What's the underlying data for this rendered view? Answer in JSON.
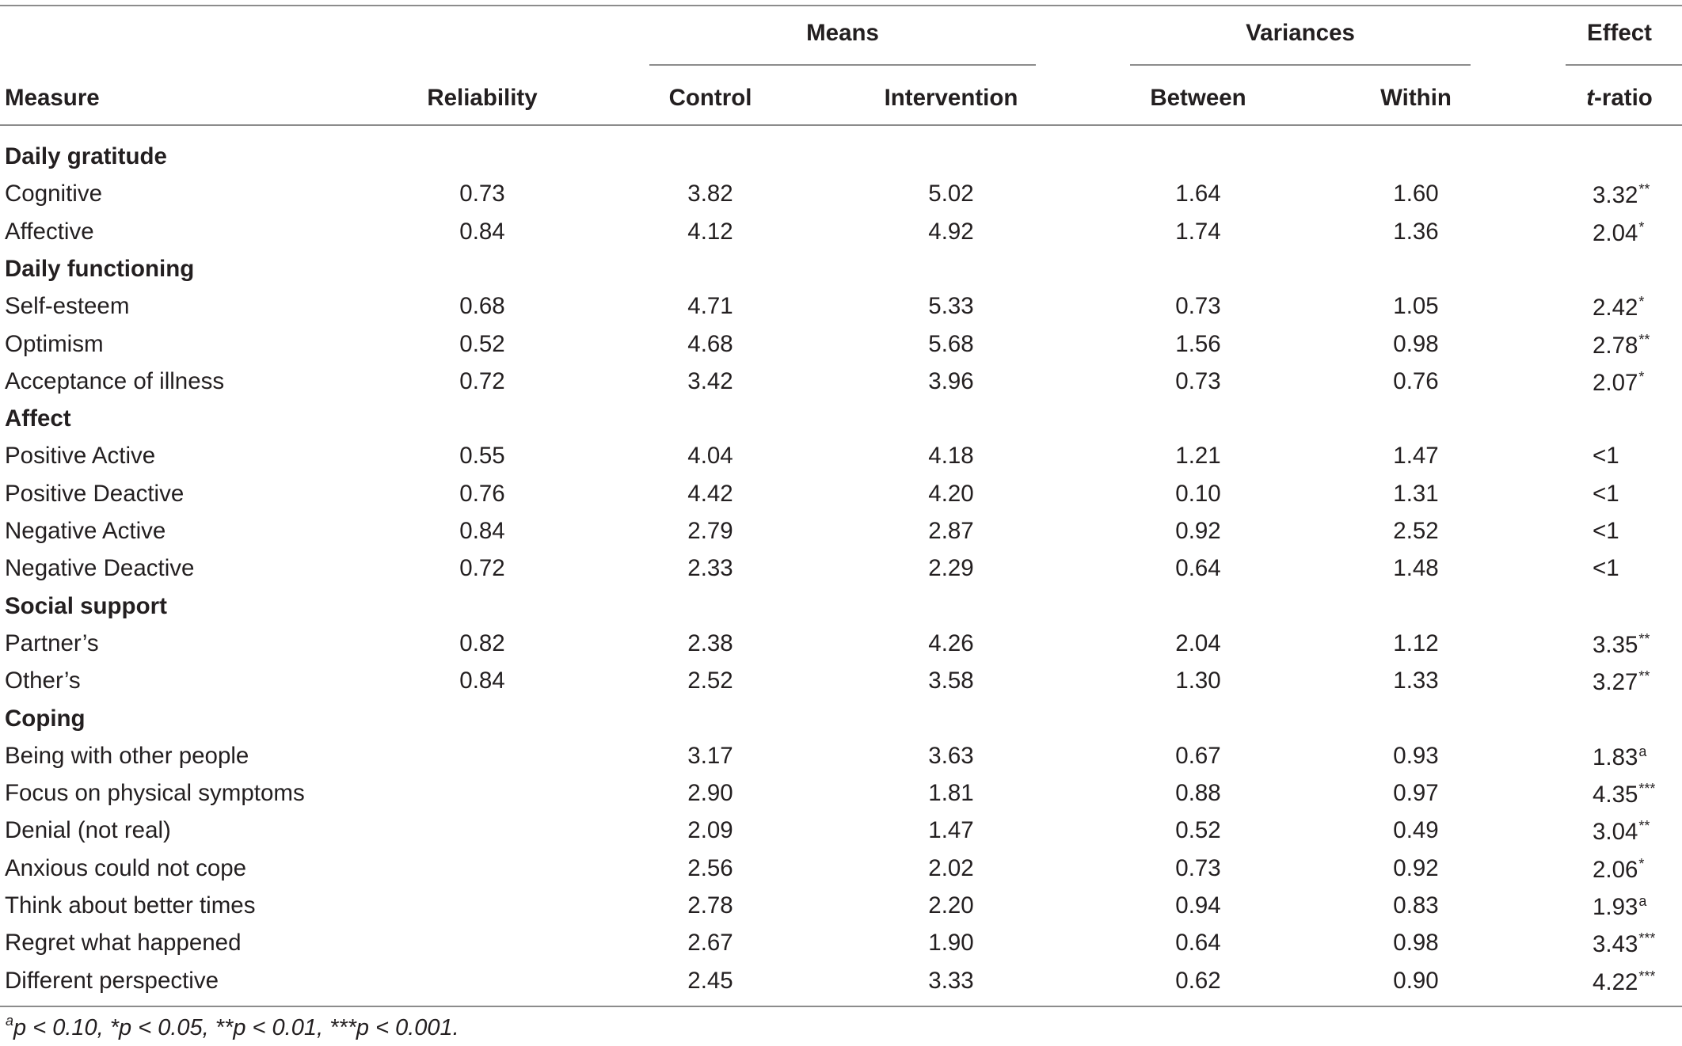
{
  "headers": {
    "group_means": "Means",
    "group_variances": "Variances",
    "group_effect": "Effect",
    "measure": "Measure",
    "reliability": "Reliability",
    "control": "Control",
    "intervention": "Intervention",
    "between": "Between",
    "within": "Within",
    "t_italic": "t",
    "t_suffix": "-ratio"
  },
  "rows": [
    {
      "type": "section",
      "label": "Daily gratitude"
    },
    {
      "type": "data",
      "measure": "Cognitive",
      "reliability": "0.73",
      "control": "3.82",
      "intervention": "5.02",
      "between": "1.64",
      "within": "1.60",
      "t": "3.32",
      "sig": "**"
    },
    {
      "type": "data",
      "measure": "Affective",
      "reliability": "0.84",
      "control": "4.12",
      "intervention": "4.92",
      "between": "1.74",
      "within": "1.36",
      "t": "2.04",
      "sig": "*"
    },
    {
      "type": "section",
      "label": "Daily functioning"
    },
    {
      "type": "data",
      "measure": "Self-esteem",
      "reliability": "0.68",
      "control": "4.71",
      "intervention": "5.33",
      "between": "0.73",
      "within": "1.05",
      "t": "2.42",
      "sig": "*"
    },
    {
      "type": "data",
      "measure": "Optimism",
      "reliability": "0.52",
      "control": "4.68",
      "intervention": "5.68",
      "between": "1.56",
      "within": "0.98",
      "t": "2.78",
      "sig": "**"
    },
    {
      "type": "data",
      "measure": "Acceptance of illness",
      "reliability": "0.72",
      "control": "3.42",
      "intervention": "3.96",
      "between": "0.73",
      "within": "0.76",
      "t": "2.07",
      "sig": "*"
    },
    {
      "type": "section",
      "label": "Affect"
    },
    {
      "type": "data",
      "measure": "Positive Active",
      "reliability": "0.55",
      "control": "4.04",
      "intervention": "4.18",
      "between": "1.21",
      "within": "1.47",
      "t": "<1",
      "sig": ""
    },
    {
      "type": "data",
      "measure": "Positive Deactive",
      "reliability": "0.76",
      "control": "4.42",
      "intervention": "4.20",
      "between": "0.10",
      "within": "1.31",
      "t": "<1",
      "sig": ""
    },
    {
      "type": "data",
      "measure": "Negative Active",
      "reliability": "0.84",
      "control": "2.79",
      "intervention": "2.87",
      "between": "0.92",
      "within": "2.52",
      "t": "<1",
      "sig": ""
    },
    {
      "type": "data",
      "measure": "Negative Deactive",
      "reliability": "0.72",
      "control": "2.33",
      "intervention": "2.29",
      "between": "0.64",
      "within": "1.48",
      "t": "<1",
      "sig": ""
    },
    {
      "type": "section",
      "label": "Social support"
    },
    {
      "type": "data",
      "measure": "Partner’s",
      "reliability": "0.82",
      "control": "2.38",
      "intervention": "4.26",
      "between": "2.04",
      "within": "1.12",
      "t": "3.35",
      "sig": "**"
    },
    {
      "type": "data",
      "measure": "Other’s",
      "reliability": "0.84",
      "control": "2.52",
      "intervention": "3.58",
      "between": "1.30",
      "within": "1.33",
      "t": "3.27",
      "sig": "**"
    },
    {
      "type": "section",
      "label": "Coping"
    },
    {
      "type": "data",
      "measure": "Being with other people",
      "reliability": "",
      "control": "3.17",
      "intervention": "3.63",
      "between": "0.67",
      "within": "0.93",
      "t": "1.83",
      "sig": "a"
    },
    {
      "type": "data",
      "measure": "Focus on physical symptoms",
      "reliability": "",
      "control": "2.90",
      "intervention": "1.81",
      "between": "0.88",
      "within": "0.97",
      "t": "4.35",
      "sig": "***"
    },
    {
      "type": "data",
      "measure": "Denial (not real)",
      "reliability": "",
      "control": "2.09",
      "intervention": "1.47",
      "between": "0.52",
      "within": "0.49",
      "t": "3.04",
      "sig": "**"
    },
    {
      "type": "data",
      "measure": "Anxious could not cope",
      "reliability": "",
      "control": "2.56",
      "intervention": "2.02",
      "between": "0.73",
      "within": "0.92",
      "t": "2.06",
      "sig": "*"
    },
    {
      "type": "data",
      "measure": "Think about better times",
      "reliability": "",
      "control": "2.78",
      "intervention": "2.20",
      "between": "0.94",
      "within": "0.83",
      "t": "1.93",
      "sig": "a"
    },
    {
      "type": "data",
      "measure": "Regret what happened",
      "reliability": "",
      "control": "2.67",
      "intervention": "1.90",
      "between": "0.64",
      "within": "0.98",
      "t": "3.43",
      "sig": "***"
    },
    {
      "type": "data",
      "measure": "Different perspective",
      "reliability": "",
      "control": "2.45",
      "intervention": "3.33",
      "between": "0.62",
      "within": "0.90",
      "t": "4.22",
      "sig": "***"
    }
  ],
  "footnote": {
    "sup": "a",
    "text": "p < 0.10, *p < 0.05, **p < 0.01, ***p < 0.001."
  }
}
